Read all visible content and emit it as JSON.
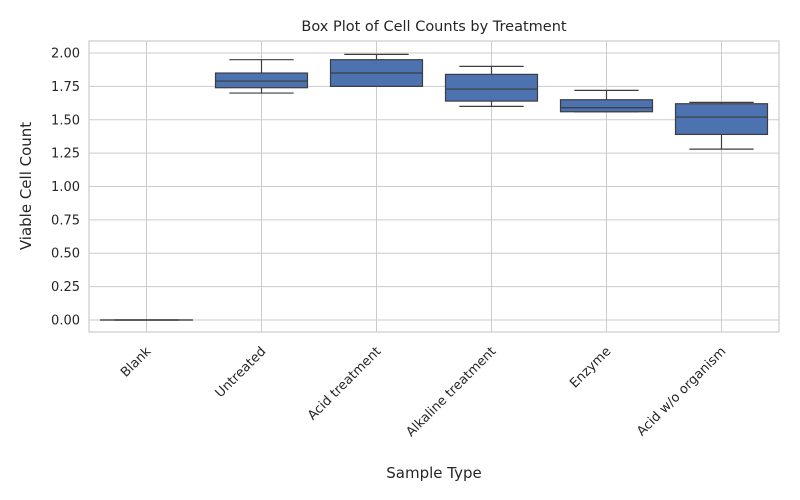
{
  "chart_data": {
    "type": "boxplot",
    "title": "Box Plot of Cell Counts by Treatment",
    "xlabel": "Sample Type",
    "ylabel": "Viable Cell Count",
    "ylim": [
      -0.09,
      2.09
    ],
    "yticks": [
      "0.00",
      "0.25",
      "0.50",
      "0.75",
      "1.00",
      "1.25",
      "1.50",
      "1.75",
      "2.00"
    ],
    "grid": true,
    "box_color": "#4c72b0",
    "categories": [
      "Blank",
      "Untreated",
      "Acid treatment",
      "Alkaline treatment",
      "Enzyme",
      "Acid w/o organism"
    ],
    "boxes": [
      {
        "whisker_low": 0.0,
        "q1": 0.0,
        "median": 0.0,
        "q3": 0.0,
        "whisker_high": 0.0
      },
      {
        "whisker_low": 1.7,
        "q1": 1.74,
        "median": 1.79,
        "q3": 1.85,
        "whisker_high": 1.95
      },
      {
        "whisker_low": 1.75,
        "q1": 1.75,
        "median": 1.85,
        "q3": 1.95,
        "whisker_high": 1.99
      },
      {
        "whisker_low": 1.6,
        "q1": 1.64,
        "median": 1.73,
        "q3": 1.84,
        "whisker_high": 1.9
      },
      {
        "whisker_low": 1.56,
        "q1": 1.56,
        "median": 1.59,
        "q3": 1.65,
        "whisker_high": 1.72
      },
      {
        "whisker_low": 1.28,
        "q1": 1.39,
        "median": 1.52,
        "q3": 1.62,
        "whisker_high": 1.63
      }
    ]
  }
}
